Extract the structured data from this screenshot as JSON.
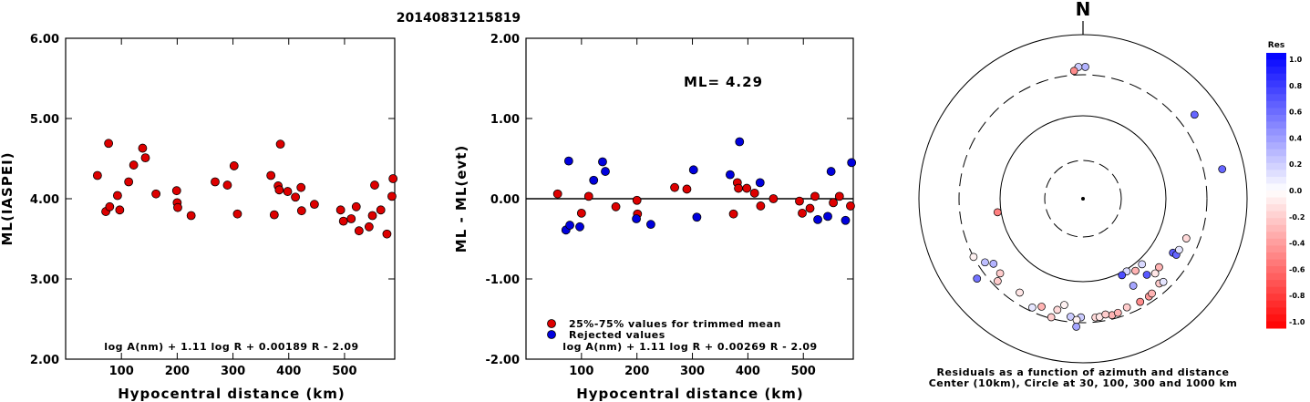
{
  "title": "20140831215819",
  "chart_data": [
    {
      "type": "scatter",
      "name": "left",
      "ylabel": "ML(IASPEI)",
      "xlabel": "Hypocentral distance (km)",
      "xlim": [
        0,
        590
      ],
      "ylim": [
        2.0,
        6.0
      ],
      "xticks": [
        100,
        200,
        300,
        400,
        500
      ],
      "yticks": [
        2.0,
        3.0,
        4.0,
        5.0,
        6.0
      ],
      "ytick_labels": [
        "2.00",
        "3.00",
        "4.00",
        "5.00",
        "6.00"
      ],
      "formula": "log A(nm) + 1.11 log R + 0.00189 R - 2.09",
      "point_color": "#dd0000",
      "points": [
        [
          57,
          4.29
        ],
        [
          72,
          3.84
        ],
        [
          77,
          4.69
        ],
        [
          79,
          3.9
        ],
        [
          93,
          4.04
        ],
        [
          97,
          3.86
        ],
        [
          113,
          4.21
        ],
        [
          122,
          4.42
        ],
        [
          138,
          4.63
        ],
        [
          143,
          4.51
        ],
        [
          162,
          4.06
        ],
        [
          199,
          4.1
        ],
        [
          200,
          3.95
        ],
        [
          201,
          3.89
        ],
        [
          225,
          3.79
        ],
        [
          268,
          4.21
        ],
        [
          290,
          4.17
        ],
        [
          302,
          4.41
        ],
        [
          308,
          3.81
        ],
        [
          368,
          4.29
        ],
        [
          374,
          3.8
        ],
        [
          381,
          4.16
        ],
        [
          383,
          4.11
        ],
        [
          385,
          4.68
        ],
        [
          398,
          4.09
        ],
        [
          412,
          4.02
        ],
        [
          422,
          4.14
        ],
        [
          423,
          3.85
        ],
        [
          446,
          3.93
        ],
        [
          493,
          3.86
        ],
        [
          498,
          3.72
        ],
        [
          512,
          3.75
        ],
        [
          521,
          3.9
        ],
        [
          526,
          3.6
        ],
        [
          544,
          3.65
        ],
        [
          550,
          3.79
        ],
        [
          554,
          4.17
        ],
        [
          565,
          3.86
        ],
        [
          576,
          3.56
        ],
        [
          585,
          4.03
        ],
        [
          587,
          4.25
        ],
        [
          592,
          3.68
        ],
        [
          594,
          3.88
        ]
      ]
    },
    {
      "type": "scatter",
      "name": "right",
      "ylabel": "ML - ML(evt)",
      "xlabel": "Hypocentral distance (km)",
      "xlim": [
        0,
        590
      ],
      "ylim": [
        -2.0,
        2.0
      ],
      "xticks": [
        100,
        200,
        300,
        400,
        500
      ],
      "yticks": [
        -2.0,
        -1.0,
        0.0,
        1.0,
        2.0
      ],
      "ytick_labels": [
        "-2.00",
        "-1.00",
        "0.00",
        "1.00",
        "2.00"
      ],
      "ml_label": "ML=",
      "ml_value": "4.29",
      "formula": "log A(nm) + 1.11 log R + 0.00269 R - 2.09",
      "legend": [
        {
          "label": "25%-75% values for trimmed mean",
          "color": "#dd0000"
        },
        {
          "label": "Rejected values",
          "color": "#0000dd"
        }
      ],
      "points_trimmed": [
        [
          57,
          0.06
        ],
        [
          100,
          -0.18
        ],
        [
          113,
          0.03
        ],
        [
          162,
          -0.1
        ],
        [
          200,
          -0.02
        ],
        [
          201,
          -0.19
        ],
        [
          268,
          0.14
        ],
        [
          290,
          0.12
        ],
        [
          374,
          -0.19
        ],
        [
          381,
          0.2
        ],
        [
          383,
          0.13
        ],
        [
          398,
          0.13
        ],
        [
          412,
          0.07
        ],
        [
          423,
          -0.09
        ],
        [
          446,
          0.0
        ],
        [
          493,
          -0.03
        ],
        [
          498,
          -0.18
        ],
        [
          512,
          -0.12
        ],
        [
          521,
          0.03
        ],
        [
          554,
          -0.05
        ],
        [
          565,
          0.03
        ],
        [
          585,
          -0.09
        ]
      ],
      "points_rejected": [
        [
          72,
          -0.39
        ],
        [
          77,
          0.47
        ],
        [
          79,
          -0.33
        ],
        [
          97,
          -0.35
        ],
        [
          122,
          0.23
        ],
        [
          138,
          0.46
        ],
        [
          143,
          0.34
        ],
        [
          199,
          -0.25
        ],
        [
          225,
          -0.32
        ],
        [
          302,
          0.36
        ],
        [
          308,
          -0.23
        ],
        [
          368,
          0.3
        ],
        [
          385,
          0.71
        ],
        [
          422,
          0.2
        ],
        [
          526,
          -0.26
        ],
        [
          544,
          -0.22
        ],
        [
          550,
          0.34
        ],
        [
          576,
          -0.27
        ],
        [
          587,
          0.45
        ],
        [
          592,
          0.21
        ]
      ]
    },
    {
      "type": "scatter",
      "name": "polar",
      "north_label": "N",
      "caption_line1": "Residuals as a function of azimuth and distance",
      "caption_line2": "Center (10km), Circle at 30, 100, 300 and 1000 km",
      "colorbar_title": "Res",
      "colorbar_ticks": [
        "1.0",
        "0.8",
        "0.6",
        "0.4",
        "0.2",
        "0.0",
        "-0.2",
        "-0.4",
        "-0.6",
        "-0.8",
        "-1.0"
      ],
      "points_az_dist_res": [
        [
          1,
          380,
          0.3
        ],
        [
          358,
          380,
          0.2
        ],
        [
          356,
          340,
          -0.45
        ],
        [
          261,
          110,
          -0.5
        ],
        [
          149,
          105,
          0.15
        ],
        [
          153,
          108,
          0.7
        ],
        [
          138,
          115,
          0.15
        ],
        [
          144,
          118,
          -0.3
        ],
        [
          140,
          155,
          0.65
        ],
        [
          136,
          175,
          -0.1
        ],
        [
          132,
          168,
          -0.3
        ],
        [
          150,
          160,
          0.35
        ],
        [
          121,
          180,
          0.65
        ],
        [
          121,
          200,
          0.6
        ],
        [
          118,
          200,
          0.1
        ],
        [
          111,
          210,
          -0.15
        ],
        [
          53,
          480,
          0.6
        ],
        [
          78,
          520,
          0.6
        ],
        [
          242,
          300,
          -0.05
        ],
        [
          237,
          248,
          0.25
        ],
        [
          234,
          210,
          0.3
        ],
        [
          228,
          215,
          -0.2
        ],
        [
          226,
          260,
          -0.2
        ],
        [
          233,
          390,
          0.55
        ],
        [
          214,
          225,
          -0.1
        ],
        [
          201,
          240,
          -0.3
        ],
        [
          190,
          195,
          -0.05
        ],
        [
          193,
          230,
          -0.15
        ],
        [
          186,
          260,
          0.2
        ],
        [
          181,
          260,
          0.2
        ],
        [
          174,
          265,
          -0.15
        ],
        [
          172,
          265,
          -0.1
        ],
        [
          166,
          270,
          -0.3
        ],
        [
          163,
          265,
          -0.3
        ],
        [
          169,
          255,
          -0.2
        ],
        [
          158,
          250,
          -0.2
        ],
        [
          183,
          280,
          -0.05
        ],
        [
          183,
          340,
          0.35
        ],
        [
          151,
          255,
          -0.45
        ],
        [
          146,
          255,
          -0.4
        ],
        [
          144,
          250,
          -0.3
        ],
        [
          138,
          230,
          -0.2
        ],
        [
          136,
          240,
          0.1
        ],
        [
          195,
          290,
          -0.2
        ],
        [
          205,
          270,
          0.1
        ]
      ]
    }
  ]
}
